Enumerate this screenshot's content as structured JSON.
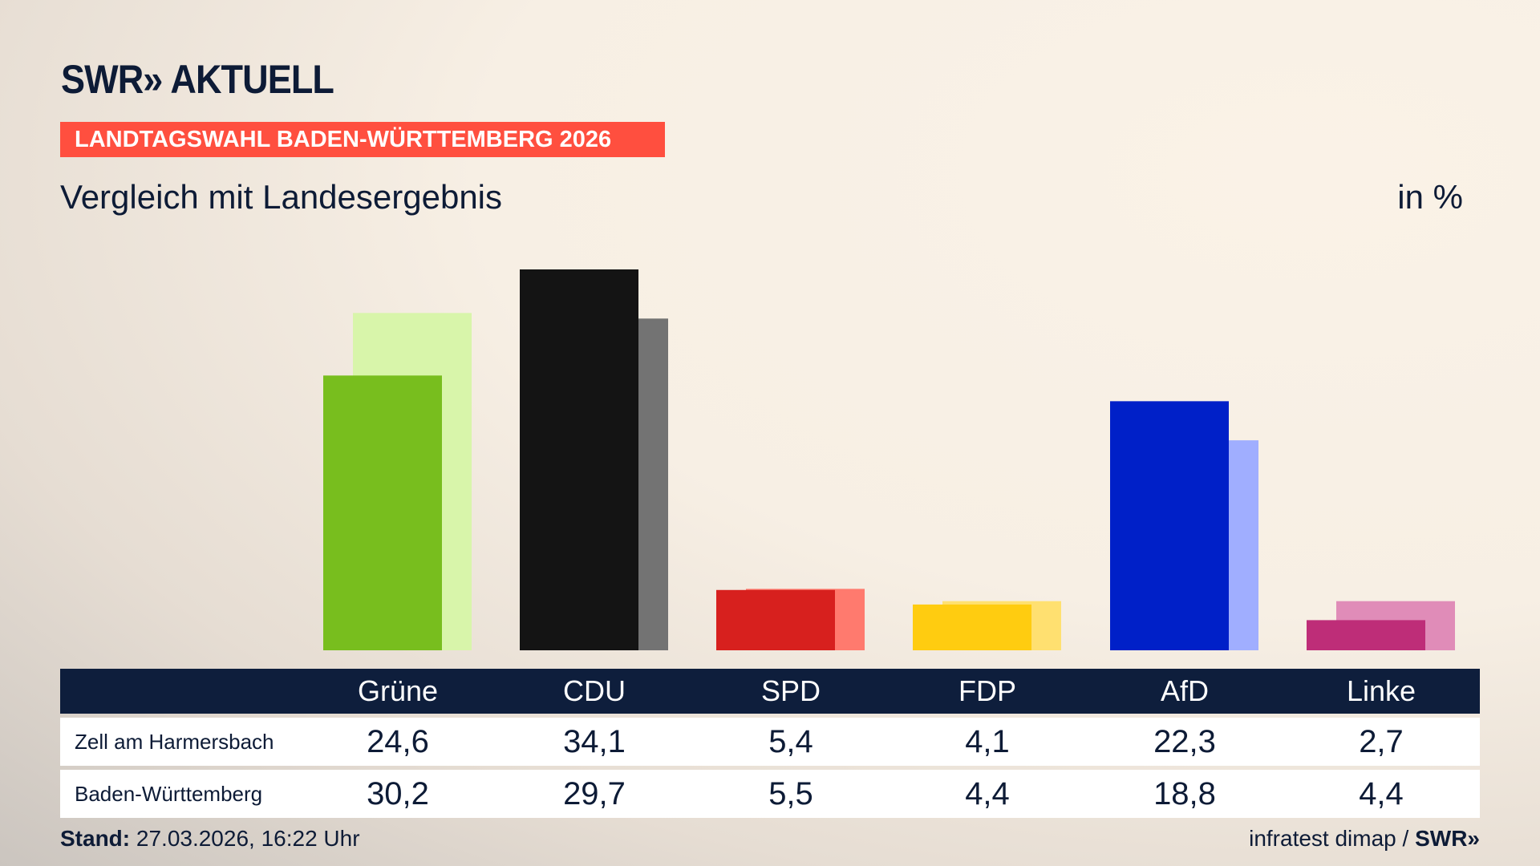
{
  "header": {
    "logo": "SWR» AKTUELL",
    "banner": "LANDTAGSWAHL BADEN-WÜRTTEMBERG 2026",
    "subtitle": "Vergleich mit Landesergebnis",
    "unit": "in %"
  },
  "chart_data": {
    "type": "bar",
    "categories": [
      "Grüne",
      "CDU",
      "SPD",
      "FDP",
      "AfD",
      "Linke"
    ],
    "series": [
      {
        "name": "Zell am Harmersbach",
        "values": [
          24.6,
          34.1,
          5.4,
          4.1,
          22.3,
          2.7
        ],
        "labels": [
          "24,6",
          "34,1",
          "5,4",
          "4,1",
          "22,3",
          "2,7"
        ]
      },
      {
        "name": "Baden-Württemberg",
        "values": [
          30.2,
          29.7,
          5.5,
          4.4,
          18.8,
          4.4
        ],
        "labels": [
          "30,2",
          "29,7",
          "5,5",
          "4,4",
          "18,8",
          "4,4"
        ]
      }
    ],
    "colors": {
      "front": [
        "#78be1e",
        "#141414",
        "#d7201e",
        "#ffcc10",
        "#0020c8",
        "#be2d78"
      ],
      "back": [
        "#d8f5aa",
        "#737373",
        "#ff7a6e",
        "#ffe070",
        "#a0aeff",
        "#e08cb8"
      ]
    },
    "grid": false
  },
  "footer": {
    "stand_label": "Stand:",
    "stand_value": " 27.03.2026, 16:22 Uhr",
    "source": "infratest dimap / ",
    "source_logo": "SWR»"
  }
}
